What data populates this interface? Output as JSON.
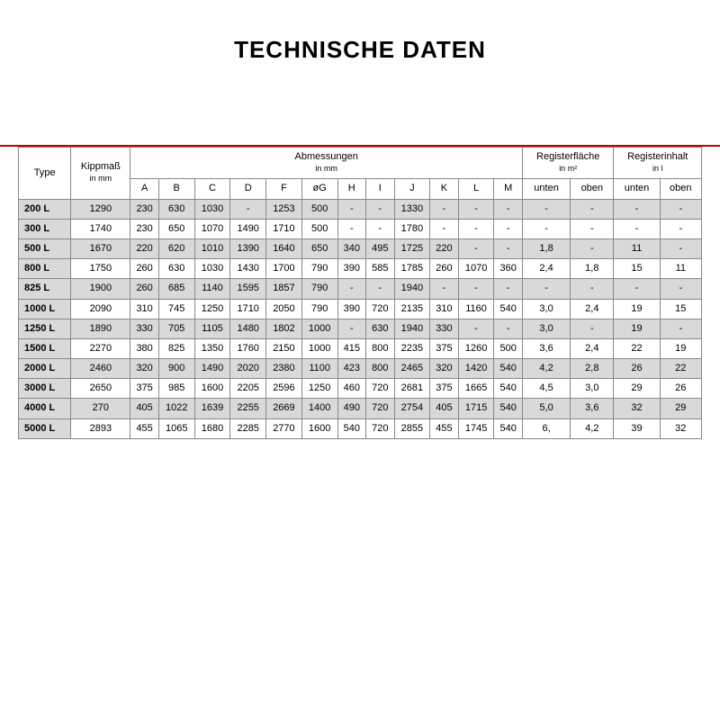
{
  "title": "TECHNISCHE DATEN",
  "colors": {
    "accent_bar": "#c00000",
    "row_shade": "#d9d9d9",
    "border": "#888888",
    "background": "#ffffff",
    "text": "#000000"
  },
  "headers": {
    "type": "Type",
    "kipp": "Kippmaß",
    "kipp_unit": "in mm",
    "abm": "Abmessungen",
    "abm_unit": "in mm",
    "regfl": "Registerfläche",
    "regfl_unit": "in m²",
    "reginh": "Registerinhalt",
    "reginh_unit": "in l",
    "cols": [
      "A",
      "B",
      "C",
      "D",
      "F",
      "øG",
      "H",
      "I",
      "J",
      "K",
      "L",
      "M"
    ],
    "unten": "unten",
    "oben": "oben"
  },
  "rows": [
    {
      "type": "200 L",
      "kipp": "1290",
      "v": [
        "230",
        "630",
        "1030",
        "-",
        "1253",
        "500",
        "-",
        "-",
        "1330",
        "-",
        "-",
        "-"
      ],
      "rf": [
        "-",
        "-"
      ],
      "ri": [
        "-",
        "-"
      ]
    },
    {
      "type": "300 L",
      "kipp": "1740",
      "v": [
        "230",
        "650",
        "1070",
        "1490",
        "1710",
        "500",
        "-",
        "-",
        "1780",
        "-",
        "-",
        "-"
      ],
      "rf": [
        "-",
        "-"
      ],
      "ri": [
        "-",
        "-"
      ]
    },
    {
      "type": "500 L",
      "kipp": "1670",
      "v": [
        "220",
        "620",
        "1010",
        "1390",
        "1640",
        "650",
        "340",
        "495",
        "1725",
        "220",
        "-",
        "-"
      ],
      "rf": [
        "1,8",
        "-"
      ],
      "ri": [
        "11",
        "-"
      ]
    },
    {
      "type": "800 L",
      "kipp": "1750",
      "v": [
        "260",
        "630",
        "1030",
        "1430",
        "1700",
        "790",
        "390",
        "585",
        "1785",
        "260",
        "1070",
        "360"
      ],
      "rf": [
        "2,4",
        "1,8"
      ],
      "ri": [
        "15",
        "11"
      ]
    },
    {
      "type": "825 L",
      "kipp": "1900",
      "v": [
        "260",
        "685",
        "1140",
        "1595",
        "1857",
        "790",
        "-",
        "-",
        "1940",
        "-",
        "-",
        "-"
      ],
      "rf": [
        "-",
        "-"
      ],
      "ri": [
        "-",
        "-"
      ]
    },
    {
      "type": "1000 L",
      "kipp": "2090",
      "v": [
        "310",
        "745",
        "1250",
        "1710",
        "2050",
        "790",
        "390",
        "720",
        "2135",
        "310",
        "1160",
        "540"
      ],
      "rf": [
        "3,0",
        "2,4"
      ],
      "ri": [
        "19",
        "15"
      ]
    },
    {
      "type": "1250 L",
      "kipp": "1890",
      "v": [
        "330",
        "705",
        "1105",
        "1480",
        "1802",
        "1000",
        "-",
        "630",
        "1940",
        "330",
        "-",
        "-"
      ],
      "rf": [
        "3,0",
        "-"
      ],
      "ri": [
        "19",
        "-"
      ]
    },
    {
      "type": "1500 L",
      "kipp": "2270",
      "v": [
        "380",
        "825",
        "1350",
        "1760",
        "2150",
        "1000",
        "415",
        "800",
        "2235",
        "375",
        "1260",
        "500"
      ],
      "rf": [
        "3,6",
        "2,4"
      ],
      "ri": [
        "22",
        "19"
      ]
    },
    {
      "type": "2000 L",
      "kipp": "2460",
      "v": [
        "320",
        "900",
        "1490",
        "2020",
        "2380",
        "1100",
        "423",
        "800",
        "2465",
        "320",
        "1420",
        "540"
      ],
      "rf": [
        "4,2",
        "2,8"
      ],
      "ri": [
        "26",
        "22"
      ]
    },
    {
      "type": "3000 L",
      "kipp": "2650",
      "v": [
        "375",
        "985",
        "1600",
        "2205",
        "2596",
        "1250",
        "460",
        "720",
        "2681",
        "375",
        "1665",
        "540"
      ],
      "rf": [
        "4,5",
        "3,0"
      ],
      "ri": [
        "29",
        "26"
      ]
    },
    {
      "type": "4000 L",
      "kipp": "270",
      "v": [
        "405",
        "1022",
        "1639",
        "2255",
        "2669",
        "1400",
        "490",
        "720",
        "2754",
        "405",
        "1715",
        "540"
      ],
      "rf": [
        "5,0",
        "3,6"
      ],
      "ri": [
        "32",
        "29"
      ]
    },
    {
      "type": "5000 L",
      "kipp": "2893",
      "v": [
        "455",
        "1065",
        "1680",
        "2285",
        "2770",
        "1600",
        "540",
        "720",
        "2855",
        "455",
        "1745",
        "540"
      ],
      "rf": [
        "6,",
        "4,2"
      ],
      "ri": [
        "39",
        "32"
      ]
    }
  ]
}
